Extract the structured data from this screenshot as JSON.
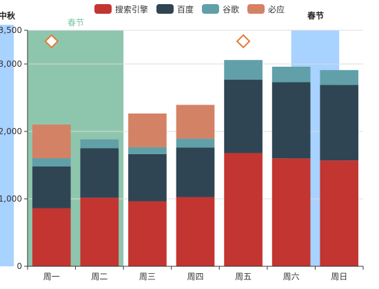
{
  "legend": [
    {
      "label": "搜索引擎",
      "color": "#c23531"
    },
    {
      "label": "百度",
      "color": "#2f4554"
    },
    {
      "label": "谷歌",
      "color": "#61a0a8"
    },
    {
      "label": "必应",
      "color": "#d48265"
    }
  ],
  "annotations": {
    "mid_autumn": "中秋",
    "spring_green": "春节",
    "spring_blue": "春节"
  },
  "chart_data": {
    "type": "bar",
    "stacked": true,
    "categories": [
      "周一",
      "周二",
      "周三",
      "周四",
      "周五",
      "周六",
      "周日"
    ],
    "series": [
      {
        "name": "搜索引擎",
        "color": "#c23531",
        "values": [
          862,
          1018,
          964,
          1026,
          1679,
          1600,
          1570
        ]
      },
      {
        "name": "百度",
        "color": "#2f4554",
        "values": [
          620,
          732,
          701,
          734,
          1090,
          1130,
          1120
        ]
      },
      {
        "name": "谷歌",
        "color": "#61a0a8",
        "values": [
          120,
          132,
          101,
          134,
          290,
          230,
          220
        ]
      },
      {
        "name": "必应",
        "color": "#d48265",
        "values": [
          500,
          0,
          500,
          500,
          0,
          0,
          0
        ]
      }
    ],
    "ylim": [
      0,
      3500
    ],
    "y_ticks": [
      "0",
      "1,000",
      "2,000",
      "3,000",
      "3,500"
    ],
    "markers": [
      {
        "category": "周一",
        "value": 3340,
        "shape": "diamond"
      },
      {
        "category": "周五",
        "value": 3340,
        "shape": "diamond"
      }
    ],
    "mark_areas": [
      {
        "name": "春节",
        "from": "周一",
        "to": "周二",
        "color": "#8ec6ad"
      },
      {
        "name": "春节",
        "from": "周六",
        "to": "周日",
        "color": "#a8d2ff"
      }
    ],
    "grid": true
  }
}
